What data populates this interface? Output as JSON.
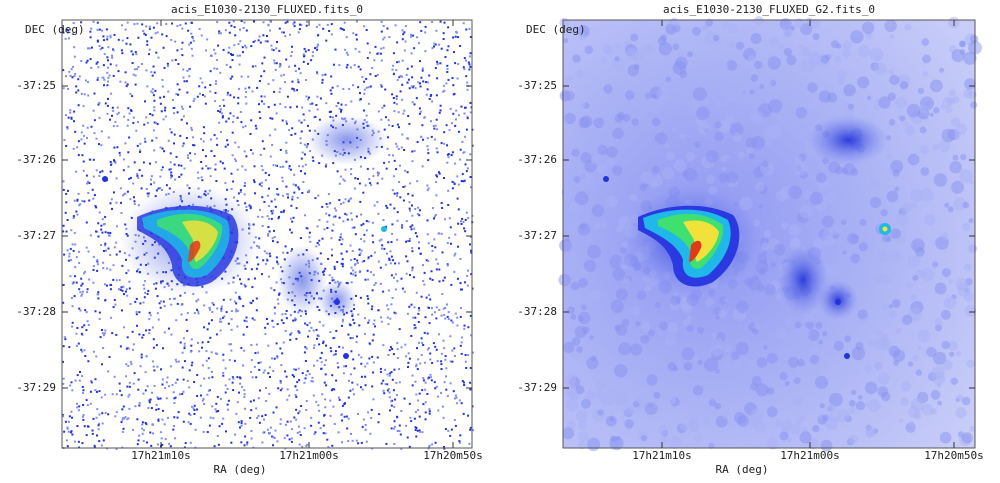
{
  "panels": [
    {
      "title": "acis_E1030-2130_FLUXED.fits_0",
      "y_label": "DEC (deg)",
      "x_label": "RA (deg)",
      "y_ticks": [
        "-37:25",
        "-37:26",
        "-37:27",
        "-37:28",
        "-37:29"
      ],
      "x_ticks": [
        "17h21m10s",
        "17h21m00s",
        "17h20m50s"
      ]
    },
    {
      "title": "acis_E1030-2130_FLUXED_G2.fits_0",
      "y_label": "DEC (deg)",
      "x_label": "RA (deg)",
      "y_ticks": [
        "-37:25",
        "-37:26",
        "-37:27",
        "-37:28",
        "-37:29"
      ],
      "x_ticks": [
        "17h21m10s",
        "17h21m00s",
        "17h20m50s"
      ]
    }
  ]
}
